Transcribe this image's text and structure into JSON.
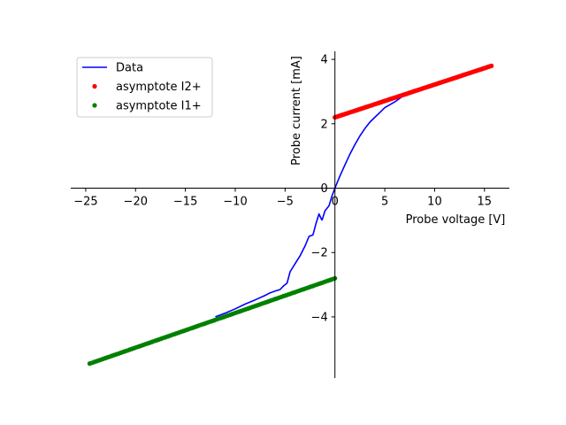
{
  "chart_data": {
    "type": "line",
    "title": "",
    "xlabel": "Probe voltage [V]",
    "ylabel": "Probe current [mA]",
    "xlim": [
      -26.5,
      17.5
    ],
    "ylim": [
      -5.9,
      4.25
    ],
    "xticks": [
      -25,
      -20,
      -15,
      -10,
      -5,
      0,
      5,
      10,
      15
    ],
    "yticks": [
      -4,
      -2,
      0,
      2,
      4
    ],
    "xtick_labels": [
      "−25",
      "−20",
      "−15",
      "−10",
      "−5",
      "0",
      "5",
      "10",
      "15"
    ],
    "ytick_labels": [
      "−4",
      "−2",
      "0",
      "2",
      "4"
    ],
    "grid": false,
    "spines": "centered at origin",
    "legend_position": "top-left",
    "series": [
      {
        "name": "Data",
        "style": "line",
        "color": "#0000ff",
        "x": [
          -1.3,
          -1.0,
          -0.6,
          -0.3,
          0.0,
          0.5,
          1.0,
          1.5,
          2.0,
          2.5,
          3.0,
          3.5,
          4.0,
          4.5,
          5.0,
          6.0,
          7.0
        ],
        "y": [
          -1.0,
          -0.7,
          -0.55,
          -0.25,
          0.0,
          0.38,
          0.72,
          1.05,
          1.35,
          1.62,
          1.85,
          2.05,
          2.2,
          2.35,
          2.5,
          2.68,
          2.9
        ]
      },
      {
        "name": "Data",
        "style": "line",
        "color": "#0000ff",
        "x": [
          -12.0,
          -11.0,
          -10.0,
          -9.0,
          -8.0,
          -7.0,
          -6.5,
          -6.0,
          -5.5,
          -5.2,
          -4.8,
          -4.5,
          -4.0,
          -3.5,
          -3.0,
          -2.6,
          -2.2,
          -1.9,
          -1.6,
          -1.3
        ],
        "y": [
          -4.0,
          -3.88,
          -3.75,
          -3.6,
          -3.47,
          -3.33,
          -3.25,
          -3.2,
          -3.15,
          -3.05,
          -2.95,
          -2.6,
          -2.35,
          -2.1,
          -1.8,
          -1.5,
          -1.45,
          -1.1,
          -0.8,
          -1.0
        ]
      },
      {
        "name": "asymptote I2+",
        "style": "markers",
        "color": "#ff0000",
        "x_range": [
          0,
          15.7
        ],
        "y_range": [
          2.2,
          3.8
        ]
      },
      {
        "name": "asymptote I1+",
        "style": "markers",
        "color": "#008000",
        "x_range": [
          -24.6,
          0
        ],
        "y_range": [
          -5.45,
          -2.8
        ]
      }
    ],
    "legend": [
      {
        "label": "Data",
        "kind": "line",
        "color": "#0000ff"
      },
      {
        "label": "asymptote I2+",
        "kind": "marker",
        "color": "#ff0000"
      },
      {
        "label": "asymptote I1+",
        "kind": "marker",
        "color": "#008000"
      }
    ]
  }
}
